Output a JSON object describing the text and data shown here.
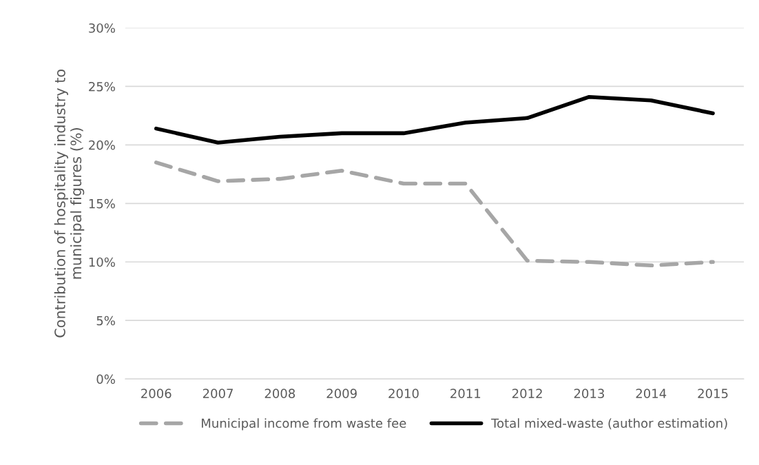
{
  "chart_data": {
    "type": "line",
    "ylabel": "Contribution of hospitality industry to\nmunicipal figures (%)",
    "categories": [
      "2006",
      "2007",
      "2008",
      "2009",
      "2010",
      "2011",
      "2012",
      "2013",
      "2014",
      "2015"
    ],
    "series": [
      {
        "name": "Municipal income from waste fee",
        "color": "#a6a6a6",
        "line_style": "dashed",
        "values": [
          18.5,
          16.9,
          17.1,
          17.8,
          16.7,
          16.7,
          10.1,
          10.0,
          9.7,
          10.0
        ]
      },
      {
        "name": "Total mixed-waste (author estimation)",
        "color": "#000000",
        "line_style": "solid",
        "values": [
          21.4,
          20.2,
          20.7,
          21.0,
          21.0,
          21.9,
          22.3,
          24.1,
          23.8,
          22.7
        ]
      }
    ],
    "ylim": [
      0,
      30
    ],
    "yticks": [
      {
        "value": 0,
        "label": "0%"
      },
      {
        "value": 5,
        "label": "5%"
      },
      {
        "value": 10,
        "label": "10%"
      },
      {
        "value": 15,
        "label": "15%"
      },
      {
        "value": 20,
        "label": "20%"
      },
      {
        "value": 25,
        "label": "25%"
      },
      {
        "value": 30,
        "label": "30%"
      }
    ],
    "grid": "y",
    "legend": "bottom",
    "marker": "none"
  }
}
